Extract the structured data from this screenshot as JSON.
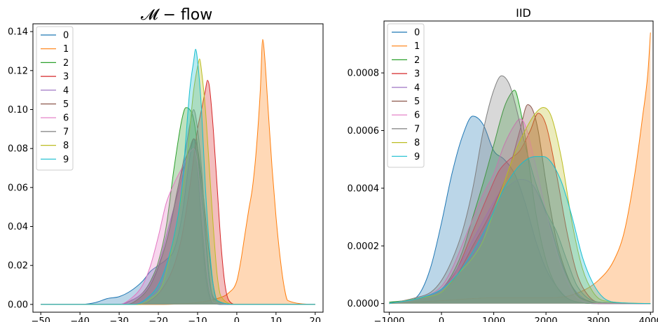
{
  "chart_data": [
    {
      "type": "area",
      "title": "𝓜 − flow",
      "xlim": [
        -52,
        22
      ],
      "ylim": [
        -0.004,
        0.144
      ],
      "xticks": [
        -50,
        -40,
        -30,
        -20,
        -10,
        0,
        10,
        20
      ],
      "yticks": [
        0.0,
        0.02,
        0.04,
        0.06,
        0.08,
        0.1,
        0.12,
        0.14
      ],
      "ytick_labels": [
        "0.00",
        "0.02",
        "0.04",
        "0.06",
        "0.08",
        "0.10",
        "0.12",
        "0.14"
      ],
      "legend": [
        "0",
        "1",
        "2",
        "3",
        "4",
        "5",
        "6",
        "7",
        "8",
        "9"
      ],
      "legend_position": "top-left",
      "grid": false,
      "series": [
        {
          "name": "0",
          "x": [
            -50,
            -40,
            -36,
            -33,
            -30,
            -27,
            -24,
            -22,
            -20,
            -18,
            -16,
            -14,
            -12,
            -11,
            -10,
            -9,
            -8,
            -7,
            -6,
            -4,
            0,
            20
          ],
          "y": [
            0,
            0,
            0.001,
            0.003,
            0.004,
            0.007,
            0.012,
            0.017,
            0.02,
            0.023,
            0.028,
            0.045,
            0.075,
            0.085,
            0.07,
            0.04,
            0.015,
            0.004,
            0.001,
            0,
            0,
            0
          ]
        },
        {
          "name": "1",
          "x": [
            -50,
            -20,
            -10,
            -5,
            -2,
            0,
            1,
            2,
            3,
            4,
            5,
            6,
            6.6,
            7,
            8,
            9,
            10,
            11,
            12,
            13,
            20
          ],
          "y": [
            0,
            0,
            0.001,
            0.003,
            0.006,
            0.012,
            0.022,
            0.035,
            0.048,
            0.06,
            0.08,
            0.11,
            0.136,
            0.13,
            0.1,
            0.07,
            0.045,
            0.025,
            0.01,
            0.002,
            0
          ]
        },
        {
          "name": "2",
          "x": [
            -50,
            -30,
            -27,
            -24,
            -22,
            -20,
            -18,
            -16,
            -14,
            -13,
            -12,
            -11,
            -10,
            -9,
            -8,
            -7,
            -6,
            0,
            20
          ],
          "y": [
            0,
            0,
            0.002,
            0.006,
            0.012,
            0.022,
            0.04,
            0.07,
            0.095,
            0.101,
            0.1,
            0.095,
            0.08,
            0.05,
            0.02,
            0.006,
            0.001,
            0,
            0
          ]
        },
        {
          "name": "3",
          "x": [
            -50,
            -25,
            -22,
            -19,
            -16,
            -14,
            -12,
            -10,
            -9,
            -8,
            -7.5,
            -7,
            -6,
            -5,
            -4,
            -3,
            -2,
            0,
            20
          ],
          "y": [
            0,
            0,
            0.002,
            0.008,
            0.02,
            0.035,
            0.06,
            0.09,
            0.1,
            0.11,
            0.115,
            0.112,
            0.09,
            0.06,
            0.03,
            0.01,
            0.002,
            0,
            0
          ]
        },
        {
          "name": "4",
          "x": [
            -50,
            -30,
            -26,
            -23,
            -20,
            -18,
            -16,
            -14,
            -12,
            -11,
            -10,
            -9,
            -8,
            -7,
            -5,
            0,
            20
          ],
          "y": [
            0,
            0,
            0.003,
            0.008,
            0.02,
            0.035,
            0.05,
            0.065,
            0.08,
            0.085,
            0.08,
            0.06,
            0.035,
            0.012,
            0.002,
            0,
            0
          ]
        },
        {
          "name": "5",
          "x": [
            -50,
            -28,
            -25,
            -22,
            -19,
            -17,
            -15,
            -13,
            -12,
            -11,
            -10,
            -9,
            -8,
            -7,
            -6,
            -5,
            0,
            20
          ],
          "y": [
            0,
            0,
            0.003,
            0.01,
            0.025,
            0.04,
            0.06,
            0.075,
            0.08,
            0.085,
            0.08,
            0.065,
            0.045,
            0.025,
            0.01,
            0.002,
            0,
            0
          ]
        },
        {
          "name": "6",
          "x": [
            -50,
            -30,
            -27,
            -24,
            -22,
            -20,
            -18,
            -16,
            -14,
            -12,
            -11,
            -10,
            -9,
            -8,
            -7,
            -6,
            0,
            20
          ],
          "y": [
            0,
            0,
            0.003,
            0.01,
            0.02,
            0.035,
            0.052,
            0.062,
            0.07,
            0.078,
            0.08,
            0.072,
            0.05,
            0.025,
            0.008,
            0.001,
            0,
            0
          ]
        },
        {
          "name": "7",
          "x": [
            -50,
            -28,
            -25,
            -22,
            -19,
            -17,
            -15,
            -13,
            -12,
            -11,
            -10,
            -9,
            -8,
            -7,
            -6,
            0,
            20
          ],
          "y": [
            0,
            0,
            0.003,
            0.01,
            0.025,
            0.04,
            0.06,
            0.08,
            0.092,
            0.1,
            0.09,
            0.07,
            0.04,
            0.015,
            0.003,
            0,
            0
          ]
        },
        {
          "name": "8",
          "x": [
            -50,
            -25,
            -22,
            -19,
            -17,
            -15,
            -13,
            -12,
            -11,
            -10,
            -9.5,
            -9,
            -8,
            -7,
            -6,
            -5,
            -4,
            0,
            20
          ],
          "y": [
            0,
            0,
            0.003,
            0.01,
            0.025,
            0.045,
            0.07,
            0.09,
            0.11,
            0.122,
            0.126,
            0.12,
            0.1,
            0.07,
            0.04,
            0.015,
            0.004,
            0,
            0
          ]
        },
        {
          "name": "9",
          "x": [
            -50,
            -26,
            -23,
            -20,
            -18,
            -16,
            -14,
            -13,
            -12,
            -11,
            -10.5,
            -10,
            -9,
            -8,
            -7,
            -6,
            -5,
            0,
            20
          ],
          "y": [
            0,
            0,
            0.003,
            0.01,
            0.02,
            0.035,
            0.06,
            0.085,
            0.11,
            0.125,
            0.131,
            0.125,
            0.1,
            0.06,
            0.03,
            0.01,
            0.002,
            0,
            0
          ]
        }
      ]
    },
    {
      "type": "area",
      "title": "IID",
      "xlim": [
        -1100,
        4050
      ],
      "ylim": [
        -3e-05,
        0.00098
      ],
      "xticks": [
        -1000,
        0,
        1000,
        2000,
        3000,
        4000
      ],
      "yticks": [
        0.0,
        0.0002,
        0.0004,
        0.0006,
        0.0008
      ],
      "ytick_labels": [
        "0.0000",
        "0.0002",
        "0.0004",
        "0.0006",
        "0.0008"
      ],
      "legend": [
        "0",
        "1",
        "2",
        "3",
        "4",
        "5",
        "6",
        "7",
        "8",
        "9"
      ],
      "legend_position": "top-left",
      "grid": false,
      "series": [
        {
          "name": "0",
          "x": [
            -1000,
            -600,
            -400,
            -200,
            0,
            200,
            400,
            600,
            800,
            1000,
            1200,
            1400,
            1600,
            1800,
            2000,
            2200,
            2400,
            2600,
            3000,
            4000
          ],
          "y": [
            5e-06,
            1e-05,
            4e-05,
            0.00013,
            0.00028,
            0.00045,
            0.00058,
            0.00065,
            0.00062,
            0.00053,
            0.0005,
            0.00045,
            0.00035,
            0.00022,
            0.00012,
            6e-05,
            2e-05,
            5e-06,
            0,
            0
          ]
        },
        {
          "name": "1",
          "x": [
            -1000,
            0,
            1000,
            2000,
            2500,
            3000,
            3300,
            3500,
            3700,
            3850,
            3950,
            4000
          ],
          "y": [
            0,
            1e-05,
            2e-05,
            2e-05,
            3e-05,
            8e-05,
            0.00015,
            0.00025,
            0.00045,
            0.00065,
            0.0008,
            0.00094
          ]
        },
        {
          "name": "2",
          "x": [
            -1000,
            -500,
            -200,
            0,
            200,
            400,
            600,
            800,
            1000,
            1200,
            1300,
            1400,
            1500,
            1600,
            1700,
            1800,
            2000,
            2200,
            2500,
            3000,
            4000
          ],
          "y": [
            5e-06,
            1.5e-05,
            3e-05,
            5e-05,
            0.0001,
            0.00018,
            0.0003,
            0.00042,
            0.00055,
            0.00068,
            0.00072,
            0.00074,
            0.00068,
            0.00058,
            0.00045,
            0.00032,
            0.00015,
            6e-05,
            1e-05,
            0,
            0
          ]
        },
        {
          "name": "3",
          "x": [
            -1000,
            -400,
            0,
            300,
            600,
            900,
            1100,
            1300,
            1500,
            1700,
            1850,
            2000,
            2200,
            2400,
            2600,
            2800,
            3000,
            4000
          ],
          "y": [
            0,
            2e-05,
            5e-05,
            0.00012,
            0.00025,
            0.00038,
            0.00046,
            0.0005,
            0.00053,
            0.0006,
            0.00066,
            0.00062,
            0.00045,
            0.00025,
            0.0001,
            3e-05,
            5e-06,
            0
          ]
        },
        {
          "name": "4",
          "x": [
            -1000,
            -400,
            0,
            300,
            600,
            900,
            1100,
            1300,
            1500,
            1700,
            1900,
            2100,
            2300,
            2500,
            2700,
            3000,
            4000
          ],
          "y": [
            0,
            2e-05,
            5e-05,
            0.00012,
            0.00022,
            0.00032,
            0.00038,
            0.00041,
            0.00043,
            0.00042,
            0.00036,
            0.00026,
            0.00014,
            6e-05,
            2e-05,
            0,
            0
          ]
        },
        {
          "name": "5",
          "x": [
            -1000,
            -400,
            0,
            300,
            600,
            900,
            1100,
            1300,
            1500,
            1650,
            1750,
            1850,
            2000,
            2200,
            2400,
            2600,
            2800,
            3000,
            4000
          ],
          "y": [
            0,
            2e-05,
            4e-05,
            0.0001,
            0.0002,
            0.0003,
            0.00038,
            0.00047,
            0.0006,
            0.00069,
            0.00067,
            0.0006,
            0.00042,
            0.00022,
            0.0001,
            3e-05,
            1e-05,
            0,
            0
          ]
        },
        {
          "name": "6",
          "x": [
            -1000,
            -400,
            0,
            200,
            500,
            800,
            1000,
            1200,
            1400,
            1500,
            1600,
            1800,
            2000,
            2200,
            2400,
            2600,
            3000,
            4000
          ],
          "y": [
            0,
            2e-05,
            6e-05,
            0.00012,
            0.00025,
            0.00038,
            0.00045,
            0.00055,
            0.00062,
            0.00064,
            0.00062,
            0.00048,
            0.00032,
            0.00018,
            8e-05,
            2e-05,
            0,
            0
          ]
        },
        {
          "name": "7",
          "x": [
            -1000,
            -500,
            -200,
            0,
            200,
            400,
            600,
            800,
            1000,
            1150,
            1300,
            1400,
            1600,
            1800,
            2000,
            2200,
            2400,
            2600,
            3000,
            4000
          ],
          "y": [
            0,
            2e-05,
            4e-05,
            8e-05,
            0.00015,
            0.00025,
            0.0004,
            0.0006,
            0.00074,
            0.00079,
            0.00076,
            0.0007,
            0.00055,
            0.00042,
            0.00032,
            0.00025,
            0.00015,
            6e-05,
            5e-06,
            0
          ]
        },
        {
          "name": "8",
          "x": [
            -1000,
            -400,
            0,
            300,
            600,
            800,
            1000,
            1200,
            1400,
            1600,
            1800,
            1950,
            2100,
            2300,
            2500,
            2700,
            2900,
            3100,
            4000
          ],
          "y": [
            0,
            2e-05,
            4e-05,
            0.0001,
            0.00016,
            0.00022,
            0.00032,
            0.00042,
            0.00052,
            0.0006,
            0.00066,
            0.00068,
            0.00065,
            0.0005,
            0.00028,
            0.00012,
            4e-05,
            1e-05,
            0
          ]
        },
        {
          "name": "9",
          "x": [
            -1000,
            -400,
            0,
            300,
            600,
            900,
            1200,
            1500,
            1800,
            1950,
            2100,
            2300,
            2500,
            2700,
            2900,
            3100,
            3300,
            4000
          ],
          "y": [
            0,
            2e-05,
            5e-05,
            0.0001,
            0.00018,
            0.00028,
            0.0004,
            0.00048,
            0.00051,
            0.00051,
            0.00049,
            0.00042,
            0.0003,
            0.00016,
            7e-05,
            2e-05,
            5e-06,
            0
          ]
        }
      ]
    }
  ],
  "colors": [
    "#1f77b4",
    "#ff7f0e",
    "#2ca02c",
    "#d62728",
    "#9467bd",
    "#8c564b",
    "#e377c2",
    "#7f7f7f",
    "#bcbd22",
    "#17becf"
  ]
}
